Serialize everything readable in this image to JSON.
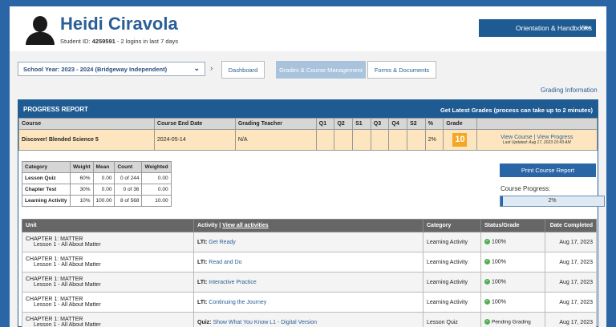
{
  "student": {
    "name": "Heidi Ciravola",
    "id_label": "Student ID: ",
    "id": "4259591",
    "logins": " - 2 logins in last 7 days"
  },
  "orientation": {
    "label": "Orientation & Handbooks",
    "view": "View"
  },
  "nav": {
    "school_year": "School Year: 2023 - 2024 (Bridgeway Independent)",
    "tabs": [
      "Dashboard",
      "Grades & Course Management",
      "Forms & Documents"
    ]
  },
  "grading_info": "Grading Information",
  "report": {
    "title": "PROGRESS REPORT",
    "latest": "Get Latest Grades (process can take up to 2 minutes)",
    "columns": [
      "Course",
      "Course End Date",
      "Grading Teacher",
      "Q1",
      "Q2",
      "S1",
      "Q3",
      "Q4",
      "S2",
      "%",
      "Grade"
    ],
    "course": {
      "name": "Discover! Blended Science 5",
      "end_date": "2024-05-14",
      "teacher": "N/A",
      "percent": "2%",
      "grade": "10",
      "view_course": "View Course",
      "sep": " | ",
      "view_progress": "View Progress",
      "updated": "Last Updated: Aug 17, 2023 10:43 AM"
    }
  },
  "categories": {
    "columns": [
      "Category",
      "Weight",
      "Mean",
      "Count",
      "Weighted"
    ],
    "rows": [
      [
        "Lesson Quiz",
        "60%",
        "0.00",
        "0 of 244",
        "0.00"
      ],
      [
        "Chapter Test",
        "30%",
        "0.00",
        "0 of 36",
        "0.00"
      ],
      [
        "Learning Activity",
        "10%",
        "100.00",
        "8 of 568",
        "10.00"
      ]
    ]
  },
  "print_button": "Print Course Report",
  "progress": {
    "label": "Course Progress:",
    "value_text": "2%",
    "fraction": 0.02
  },
  "activities": {
    "columns": {
      "unit": "Unit",
      "activity": "Activity",
      "sep": " | ",
      "view_all": "View all activities",
      "category": "Category",
      "status": "Status/Grade",
      "completed": "Date Completed"
    },
    "rows": [
      {
        "chapter": "CHAPTER 1: MATTER",
        "lesson": "Lesson 1 - All About Matter",
        "type": "LTI:",
        "name": "Get Ready",
        "category": "Learning Activity",
        "status": "100%",
        "date": "Aug 17, 2023"
      },
      {
        "chapter": "CHAPTER 1: MATTER",
        "lesson": "Lesson 1 - All About Matter",
        "type": "LTI:",
        "name": "Read and Do",
        "category": "Learning Activity",
        "status": "100%",
        "date": "Aug 17, 2023"
      },
      {
        "chapter": "CHAPTER 1: MATTER",
        "lesson": "Lesson 1 - All About Matter",
        "type": "LTI:",
        "name": "Interactive Practice",
        "category": "Learning Activity",
        "status": "100%",
        "date": "Aug 17, 2023"
      },
      {
        "chapter": "CHAPTER 1: MATTER",
        "lesson": "Lesson 1 - All About Matter",
        "type": "LTI:",
        "name": "Continuing the Journey",
        "category": "Learning Activity",
        "status": "100%",
        "date": "Aug 17, 2023"
      },
      {
        "chapter": "CHAPTER 1: MATTER",
        "lesson": "Lesson 1 - All About Matter",
        "type": "Quiz:",
        "name": "Show What You Know L1 - Digital Version",
        "category": "Lesson Quiz",
        "status": "Pending Grading",
        "date": "Aug 17, 2023"
      }
    ]
  },
  "colors": {
    "brand": "#1f5b93",
    "grade": "#f5a623",
    "check": "#4caf50"
  }
}
